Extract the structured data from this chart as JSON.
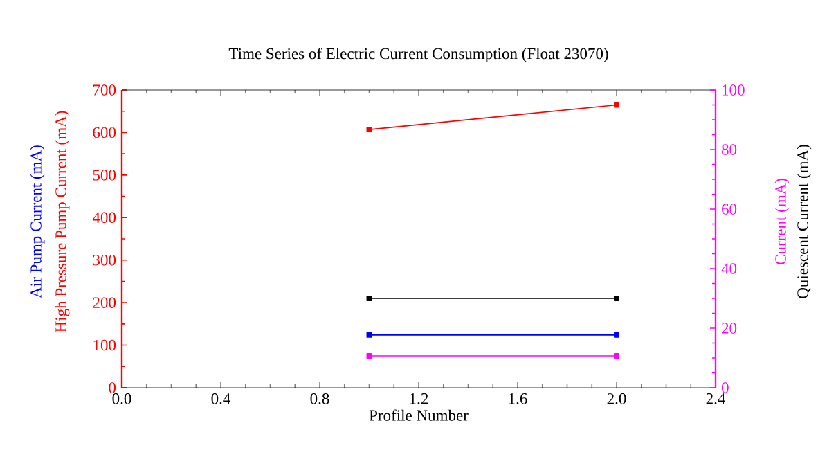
{
  "chart_data": {
    "type": "line",
    "title": "Time Series of Electric Current Consumption (Float 23070)",
    "xlabel": "Profile Number",
    "x": [
      1,
      2
    ],
    "series": [
      {
        "name": "High Pressure Pump Current (mA)",
        "color": "#ff0000",
        "values": [
          607,
          665
        ],
        "axis": "y"
      },
      {
        "name": "Air Pump Current (mA)",
        "color": "#0000ff",
        "values": [
          124,
          124
        ],
        "axis": "y"
      },
      {
        "name": "Current (mA)",
        "color": "#ff00ff",
        "values": [
          10.7,
          10.7
        ],
        "axis": "y2"
      },
      {
        "name": "Quiescent Current (mA)",
        "color": "#000000",
        "values": [
          30,
          30
        ],
        "axis": "y2"
      }
    ],
    "xlim": [
      0,
      2.4
    ],
    "xticks": [
      {
        "value": 0,
        "label": "0.0"
      },
      {
        "value": 0.4,
        "label": "0.4"
      },
      {
        "value": 0.8,
        "label": "0.8"
      },
      {
        "value": 1.2,
        "label": "1.2"
      },
      {
        "value": 1.6,
        "label": "1.6"
      },
      {
        "value": 2.0,
        "label": "2.0"
      },
      {
        "value": 2.4,
        "label": "2.4"
      }
    ],
    "ylim": [
      0,
      700
    ],
    "yticks": [
      0,
      100,
      200,
      300,
      400,
      500,
      600,
      700
    ],
    "y2lim": [
      0,
      100
    ],
    "y2ticks": [
      0,
      20,
      40,
      60,
      80,
      100
    ],
    "marker": "square",
    "line_style": "solid",
    "grid": false
  }
}
